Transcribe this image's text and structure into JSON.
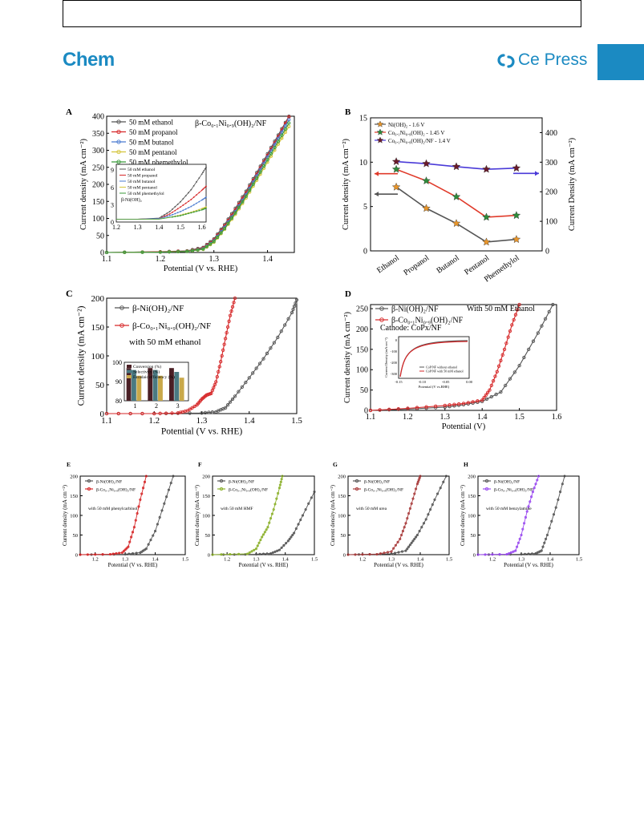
{
  "header": {
    "journal": "Chem",
    "publisher": "Ce   Press",
    "accent": "#1b8ac2"
  },
  "chart_data": [
    {
      "id": "A",
      "panel": "A",
      "type": "line",
      "xlabel": "Potential (V vs. RHE)",
      "ylabel": "Current density (mA cm⁻²)",
      "xlim": [
        1.1,
        1.45
      ],
      "ylim": [
        0,
        400
      ],
      "xticks": [
        "1.1",
        "1.2",
        "1.3",
        "1.4"
      ],
      "yticks": [
        "0",
        "50",
        "100",
        "150",
        "200",
        "250",
        "300",
        "350",
        "400"
      ],
      "annotation": "β-Co₀.₁Ni₀.₉(OH)₂/NF",
      "series": [
        {
          "name": "50 mM ethanol",
          "color": "#555555",
          "x": [
            1.1,
            1.2,
            1.25,
            1.28,
            1.3,
            1.32,
            1.34,
            1.36,
            1.38,
            1.4,
            1.42,
            1.44
          ],
          "y": [
            0,
            2,
            5,
            15,
            40,
            82,
            130,
            180,
            235,
            290,
            345,
            400
          ]
        },
        {
          "name": "50 mM propanol",
          "color": "#d62728",
          "x": [
            1.1,
            1.2,
            1.25,
            1.28,
            1.3,
            1.32,
            1.34,
            1.36,
            1.38,
            1.4,
            1.42,
            1.44
          ],
          "y": [
            0,
            2,
            4,
            13,
            37,
            78,
            125,
            175,
            230,
            285,
            340,
            398
          ]
        },
        {
          "name": "50 mM butanol",
          "color": "#4a7bd0",
          "x": [
            1.1,
            1.2,
            1.25,
            1.28,
            1.3,
            1.32,
            1.34,
            1.36,
            1.38,
            1.4,
            1.42,
            1.44
          ],
          "y": [
            0,
            1,
            3,
            11,
            34,
            74,
            120,
            170,
            225,
            280,
            335,
            390
          ]
        },
        {
          "name": "50 mM pentanol",
          "color": "#d4c43a",
          "x": [
            1.1,
            1.2,
            1.25,
            1.28,
            1.3,
            1.32,
            1.34,
            1.36,
            1.38,
            1.4,
            1.42,
            1.44
          ],
          "y": [
            0,
            1,
            3,
            9,
            30,
            68,
            112,
            160,
            212,
            265,
            318,
            370
          ]
        },
        {
          "name": "50 mM phemethylol",
          "color": "#3a9a3a",
          "x": [
            1.1,
            1.2,
            1.25,
            1.28,
            1.3,
            1.32,
            1.34,
            1.36,
            1.38,
            1.4,
            1.42,
            1.44
          ],
          "y": [
            0,
            1,
            3,
            10,
            32,
            70,
            116,
            165,
            218,
            272,
            326,
            380
          ]
        }
      ],
      "inset": {
        "xlim": [
          1.2,
          1.62
        ],
        "ylim": [
          0,
          10
        ],
        "xticks": [
          "1.2",
          "1.3",
          "1.4",
          "1.5",
          "1.6"
        ],
        "yticks": [
          "0",
          "3",
          "6",
          "9"
        ],
        "annotation": "β-Ni(OH)₂",
        "series": [
          {
            "name": "50 mM ethanol",
            "color": "#555555",
            "x": [
              1.2,
              1.3,
              1.4,
              1.45,
              1.5,
              1.55,
              1.6,
              1.62
            ],
            "y": [
              0.5,
              0.5,
              0.7,
              1.8,
              3.5,
              5.6,
              8.3,
              9.5
            ]
          },
          {
            "name": "50 mM propanol",
            "color": "#d62728",
            "x": [
              1.2,
              1.3,
              1.4,
              1.45,
              1.5,
              1.55,
              1.6,
              1.62
            ],
            "y": [
              0.5,
              0.5,
              0.6,
              1.4,
              2.6,
              3.9,
              5.5,
              6.2
            ]
          },
          {
            "name": "50 mM butanol",
            "color": "#4a7bd0",
            "x": [
              1.2,
              1.3,
              1.4,
              1.45,
              1.5,
              1.55,
              1.6,
              1.62
            ],
            "y": [
              0.5,
              0.5,
              0.6,
              1.1,
              1.8,
              2.7,
              3.8,
              4.3
            ]
          },
          {
            "name": "50 mM pentanol",
            "color": "#d4c43a",
            "x": [
              1.2,
              1.3,
              1.4,
              1.45,
              1.5,
              1.55,
              1.6,
              1.62
            ],
            "y": [
              0.5,
              0.5,
              0.5,
              0.8,
              1.2,
              1.7,
              2.3,
              2.6
            ]
          },
          {
            "name": "50 mM phemethylol",
            "color": "#3a9a3a",
            "x": [
              1.2,
              1.3,
              1.4,
              1.45,
              1.5,
              1.55,
              1.6,
              1.62
            ],
            "y": [
              0.5,
              0.5,
              0.5,
              0.8,
              1.1,
              1.6,
              2.1,
              2.4
            ]
          }
        ]
      }
    },
    {
      "id": "B",
      "panel": "B",
      "type": "line",
      "categories": [
        "Ethanol",
        "Propanol",
        "Butanol",
        "Pentanol",
        "Phemethylol"
      ],
      "ylabel": "Current density (mA cm⁻²)",
      "y2label": "Current Density (mA cm⁻²)",
      "ylim": [
        0,
        15
      ],
      "y2lim": [
        0,
        450
      ],
      "yticks": [
        "0",
        "5",
        "10",
        "15"
      ],
      "y2ticks": [
        "0",
        "100",
        "200",
        "300",
        "400"
      ],
      "series": [
        {
          "name": "Ni(OH)₂ - 1.6 V",
          "color": "#e8952a",
          "line": "#555555",
          "axis": "left",
          "values": [
            7.2,
            4.8,
            3.1,
            1.0,
            1.3
          ]
        },
        {
          "name": "Co₀.₁Ni₀.₉(OH)₂ - 1.45 V",
          "color": "#2e8b3a",
          "line": "#e03a2a",
          "axis": "left",
          "values": [
            9.2,
            7.9,
            6.1,
            3.8,
            4.0
          ]
        },
        {
          "name": "Co₀.₁Ni₀.₉(OH)₂/NF - 1.4 V",
          "color": "#6a1a2a",
          "line": "#4a3ad8",
          "axis": "right",
          "values": [
            302,
            295,
            285,
            276,
            280
          ]
        }
      ]
    },
    {
      "id": "C",
      "panel": "C",
      "type": "line",
      "xlabel": "Potential (V vs. RHE)",
      "ylabel": "Current density (mA cm⁻²)",
      "xlim": [
        1.1,
        1.5
      ],
      "ylim": [
        0,
        200
      ],
      "xticks": [
        "1.1",
        "1.2",
        "1.3",
        "1.4",
        "1.5"
      ],
      "yticks": [
        "0",
        "50",
        "100",
        "150",
        "200"
      ],
      "annotation": "with 50 mM ethanol",
      "series": [
        {
          "name": "β-Ni(OH)₂/NF",
          "color": "#555555",
          "x": [
            1.1,
            1.2,
            1.3,
            1.33,
            1.35,
            1.37,
            1.4,
            1.43,
            1.46,
            1.49,
            1.5
          ],
          "y": [
            0,
            0,
            1,
            3,
            10,
            30,
            62,
            95,
            132,
            175,
            197
          ]
        },
        {
          "name": "β-Co₀.₁Ni₀.₉(OH)₂/NF",
          "color": "#d62728",
          "x": [
            1.1,
            1.2,
            1.25,
            1.27,
            1.29,
            1.3,
            1.31,
            1.32,
            1.33,
            1.34,
            1.35,
            1.36,
            1.37
          ],
          "y": [
            0,
            0,
            1,
            5,
            15,
            25,
            32,
            35,
            55,
            90,
            130,
            170,
            200
          ]
        }
      ],
      "inset": {
        "type": "bar",
        "categories": [
          "1",
          "2",
          "3"
        ],
        "ylim": [
          80,
          100
        ],
        "yticks": [
          "80",
          "90",
          "100"
        ],
        "series": [
          {
            "name": "Conversion (%)",
            "color": "#4a1f25",
            "values": [
              97,
              97,
              97
            ]
          },
          {
            "name": "Selectivity (%)",
            "color": "#4a7a82",
            "values": [
              96,
              96,
              95
            ]
          },
          {
            "name": "Faradaic efficiency (%)",
            "color": "#c9a94a",
            "values": [
              93,
              93,
              92
            ]
          }
        ]
      }
    },
    {
      "id": "D",
      "panel": "D",
      "type": "line",
      "xlabel": "Potential (V)",
      "ylabel": "Current density (mA cm⁻²)",
      "xlim": [
        1.1,
        1.6
      ],
      "ylim": [
        0,
        260
      ],
      "xticks": [
        "1.1",
        "1.2",
        "1.3",
        "1.4",
        "1.5",
        "1.6"
      ],
      "yticks": [
        "0",
        "50",
        "100",
        "150",
        "200",
        "250"
      ],
      "annotation": "With 50 mM Ethanol",
      "annotation2": "Cathode: CoPx/NF",
      "series": [
        {
          "name": "β-Ni(OH)₂/NF",
          "color": "#555555",
          "x": [
            1.1,
            1.2,
            1.3,
            1.35,
            1.4,
            1.45,
            1.5,
            1.55,
            1.59
          ],
          "y": [
            0,
            3,
            8,
            14,
            22,
            45,
            110,
            190,
            260
          ]
        },
        {
          "name": "β-Co₀.₁Ni₀.₉(OH)₂/NF",
          "color": "#d62728",
          "x": [
            1.1,
            1.2,
            1.3,
            1.35,
            1.4,
            1.42,
            1.44,
            1.46,
            1.48,
            1.5
          ],
          "y": [
            0,
            5,
            12,
            17,
            25,
            50,
            95,
            150,
            210,
            260
          ]
        }
      ],
      "inset": {
        "xlabel": "Potential (V vs.RHE)",
        "ylabel": "Current Density (mA cm⁻²)",
        "xticks": [
          "-0.15",
          "-0.10",
          "-0.05",
          "0.00"
        ],
        "yticks": [
          "0",
          "-100",
          "-200",
          "-300"
        ],
        "series": [
          {
            "name": "CoP/NF without ethanol",
            "color": "#555555"
          },
          {
            "name": "CoP/NF with 50 mM ethanol",
            "color": "#d62728"
          }
        ]
      }
    },
    {
      "id": "E",
      "panel": "E",
      "type": "line",
      "xlabel": "Potential (V vs. RHE)",
      "ylabel": "Current density (mA cm⁻²)",
      "xlim": [
        1.15,
        1.5
      ],
      "ylim": [
        0,
        200
      ],
      "xticks": [
        "1.2",
        "1.3",
        "1.4",
        "1.5"
      ],
      "yticks": [
        "0",
        "50",
        "100",
        "150",
        "200"
      ],
      "annotation": "with 50 mM phenylcarbinol",
      "series": [
        {
          "name": "β-Ni(OH)₂/NF",
          "color": "#555555",
          "x": [
            1.15,
            1.3,
            1.35,
            1.37,
            1.4,
            1.43,
            1.46
          ],
          "y": [
            0,
            1,
            5,
            15,
            60,
            130,
            200
          ]
        },
        {
          "name": "β-Co₀.₁Ni₀.₉(OH)₂/NF",
          "color": "#d62728",
          "x": [
            1.15,
            1.25,
            1.29,
            1.31,
            1.33,
            1.35,
            1.37
          ],
          "y": [
            0,
            1,
            5,
            20,
            70,
            140,
            200
          ]
        }
      ]
    },
    {
      "id": "F",
      "panel": "F",
      "type": "line",
      "xlabel": "Potential (V vs. RHE)",
      "ylabel": "Current density (mA cm⁻²)",
      "xlim": [
        1.15,
        1.5
      ],
      "ylim": [
        0,
        200
      ],
      "xticks": [
        "1.2",
        "1.3",
        "1.4",
        "1.5"
      ],
      "yticks": [
        "0",
        "50",
        "100",
        "150",
        "200"
      ],
      "annotation": "with 50 mM HMF",
      "series": [
        {
          "name": "β-Ni(OH)₂/NF",
          "color": "#555555",
          "x": [
            1.15,
            1.3,
            1.35,
            1.38,
            1.41,
            1.43,
            1.46,
            1.5
          ],
          "y": [
            0,
            1,
            3,
            12,
            35,
            55,
            100,
            160
          ]
        },
        {
          "name": "β-Co₀.₁Ni₀.₉(OH)₂/NF",
          "color": "#8bb02a",
          "x": [
            1.15,
            1.27,
            1.3,
            1.32,
            1.34,
            1.36,
            1.38,
            1.39
          ],
          "y": [
            0,
            2,
            15,
            45,
            70,
            115,
            170,
            200
          ]
        }
      ]
    },
    {
      "id": "G",
      "panel": "G",
      "type": "line",
      "xlabel": "Potential (V vs. RHE)",
      "ylabel": "Current density (mA cm⁻²)",
      "xlim": [
        1.15,
        1.5
      ],
      "ylim": [
        0,
        200
      ],
      "xticks": [
        "1.2",
        "1.3",
        "1.4",
        "1.5"
      ],
      "yticks": [
        "0",
        "50",
        "100",
        "150",
        "200"
      ],
      "annotation": "with 50 mM urea",
      "series": [
        {
          "name": "β-Ni(OH)₂/NF",
          "color": "#555555",
          "x": [
            1.15,
            1.3,
            1.35,
            1.37,
            1.39,
            1.42,
            1.45,
            1.49
          ],
          "y": [
            0,
            2,
            10,
            30,
            50,
            90,
            140,
            200
          ]
        },
        {
          "name": "β-Co₀.₁Ni₀.₉(OH)₂/NF",
          "color": "#a83a3a",
          "x": [
            1.15,
            1.25,
            1.3,
            1.33,
            1.35,
            1.37,
            1.39,
            1.4
          ],
          "y": [
            0,
            1,
            8,
            40,
            80,
            130,
            180,
            200
          ]
        }
      ]
    },
    {
      "id": "H",
      "panel": "H",
      "type": "line",
      "xlabel": "Potential (V vs. RHE)",
      "ylabel": "Current density (mA cm⁻²)",
      "xlim": [
        1.15,
        1.5
      ],
      "ylim": [
        0,
        200
      ],
      "xticks": [
        "1.2",
        "1.3",
        "1.4",
        "1.5"
      ],
      "yticks": [
        "0",
        "50",
        "100",
        "150",
        "200"
      ],
      "annotation": "with 50 mM benzylamine",
      "series": [
        {
          "name": "β-Ni(OH)₂/NF",
          "color": "#555555",
          "x": [
            1.15,
            1.3,
            1.35,
            1.37,
            1.39,
            1.42,
            1.45
          ],
          "y": [
            0,
            1,
            3,
            10,
            50,
            120,
            200
          ]
        },
        {
          "name": "β-Co₀.₁Ni₀.₉(OH)₂/NF",
          "color": "#9a4af0",
          "x": [
            1.15,
            1.25,
            1.28,
            1.3,
            1.32,
            1.34,
            1.36
          ],
          "y": [
            0,
            1,
            10,
            50,
            110,
            160,
            200
          ]
        }
      ]
    }
  ]
}
